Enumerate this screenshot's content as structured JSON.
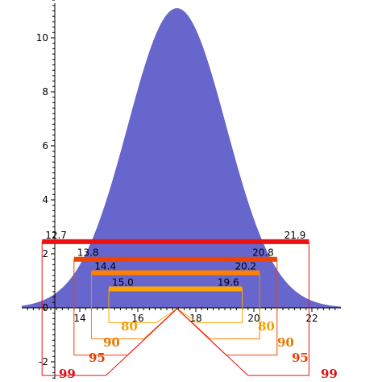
{
  "chart_data": {
    "type": "area",
    "title": "",
    "xlabel": "",
    "ylabel": "",
    "xlim": [
      12,
      23
    ],
    "ylim": [
      -2.7,
      11.6
    ],
    "x_ticks": [
      "14",
      "16",
      "18",
      "20",
      "22"
    ],
    "y_ticks": [
      "-2",
      "2",
      "4",
      "6",
      "8",
      "10"
    ],
    "y_zero_label": "0",
    "grid": false,
    "curve": {
      "kind": "normal-density",
      "mean": 17.35,
      "sd": 1.7,
      "peak": 11.1,
      "x_range": [
        12,
        23
      ],
      "fill_color": "#6666cc"
    },
    "intervals": [
      {
        "confidence": "80",
        "low": 15.0,
        "high": 19.6,
        "low_label": "15.0",
        "high_label": "19.6",
        "y": 0.7,
        "color": "#ffa500",
        "box_bottom": -0.55
      },
      {
        "confidence": "90",
        "low": 14.4,
        "high": 20.2,
        "low_label": "14.4",
        "high_label": "20.2",
        "y": 1.3,
        "color": "#ff7f00",
        "box_bottom": -1.15
      },
      {
        "confidence": "95",
        "low": 13.8,
        "high": 20.8,
        "low_label": "13.8",
        "high_label": "20.8",
        "y": 1.8,
        "color": "#ee4400",
        "box_bottom": -1.75
      },
      {
        "confidence": "99",
        "low": 12.7,
        "high": 21.9,
        "low_label": "12.7",
        "high_label": "21.9",
        "y": 2.45,
        "color": "#ee1111",
        "box_bottom": -2.5
      }
    ],
    "label_colors": {
      "80": "#f0a000",
      "90": "#e87800",
      "95": "#e84000",
      "99": "#e01010"
    }
  }
}
